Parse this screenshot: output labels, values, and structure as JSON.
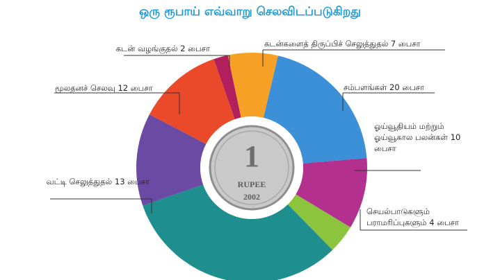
{
  "chart_data": {
    "type": "donut",
    "title": "ஒரு ரூபாய் எவ்வாறு செலவிடப்படுகிறது",
    "categories": [
      "கடன்களைத் திருப்பிச் செலுத்துதல்",
      "சம்பளங்கள்",
      "ஓய்வூதியம் மற்றும் ஓய்வூகால பலன்கள்",
      "செயல்பாடுகளும் பராமரிப்புகளும்",
      null,
      "வட்டி செலுத்துதல்",
      "மூலதனச் செலவு",
      "கடன் வழங்குதல்"
    ],
    "values": [
      7,
      20,
      10,
      4,
      32,
      13,
      12,
      2
    ],
    "value_labels": [
      "7 பைசா",
      "20 பைசா",
      "10 பைசா",
      "4 பைசா",
      null,
      "13 பைசா",
      "12 பைசா",
      "2 பைசா"
    ],
    "colors": [
      "#f6a126",
      "#3b90d8",
      "#b3308e",
      "#8cc43e",
      "#1f8e8e",
      "#6a4aa2",
      "#ea4a2a",
      "#b11f5c"
    ]
  },
  "coin": {
    "numeral": "1",
    "text": "RUPEE",
    "year": "2002"
  }
}
